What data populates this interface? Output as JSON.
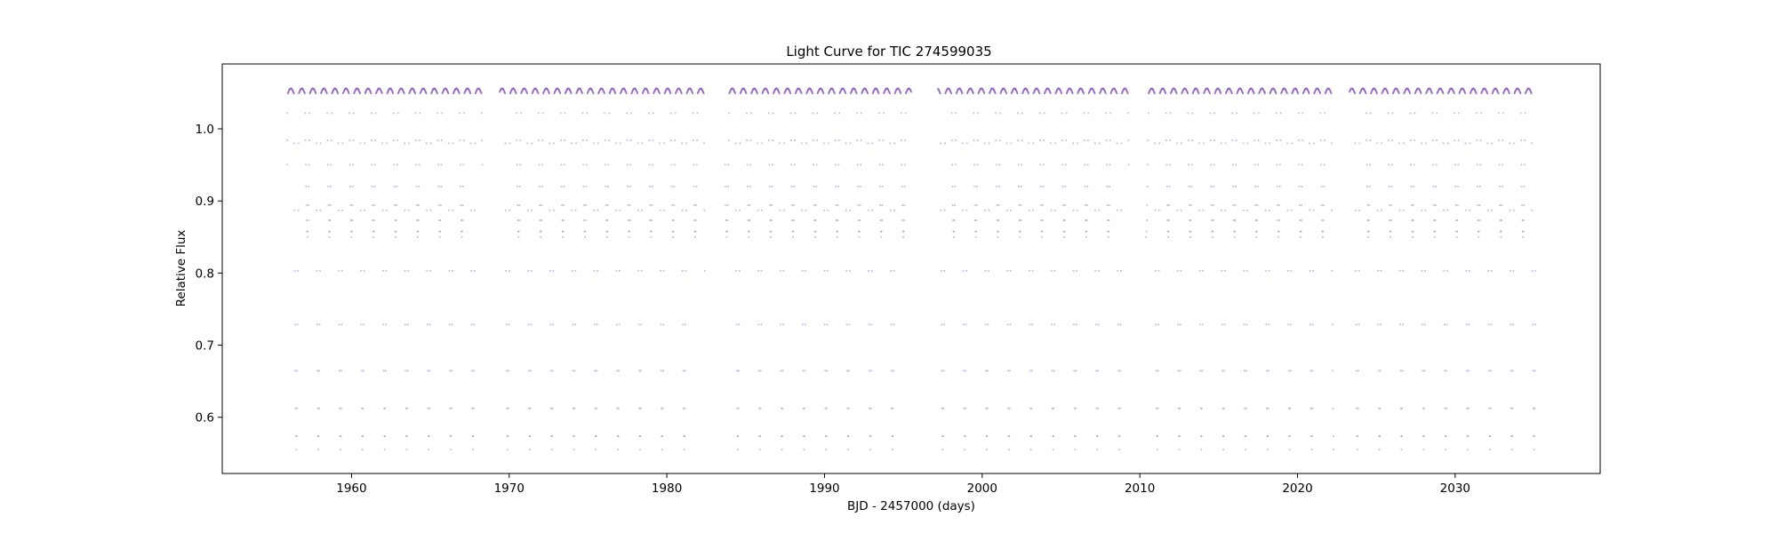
{
  "chart_data": {
    "type": "scatter",
    "title": "Light Curve for TIC 274599035",
    "xlabel": "BJD - 2457000 (days)",
    "ylabel": "Relative Flux",
    "xlim": [
      1951.8,
      2039.2
    ],
    "ylim": [
      0.522,
      1.09
    ],
    "x_ticks": [
      1960,
      1970,
      1980,
      1990,
      2000,
      2010,
      2020,
      2030
    ],
    "y_ticks": [
      0.6,
      0.7,
      0.8,
      0.9,
      1.0
    ],
    "grid": false,
    "legend": "none",
    "marker_color": "#9467bd",
    "series": [
      {
        "segments": [
          {
            "start": 1955.9,
            "end": 1968.3,
            "first_minimum": 1956.5
          },
          {
            "start": 1969.4,
            "end": 1982.4,
            "first_minimum": 1969.9
          },
          {
            "start": 1983.7,
            "end": 1995.5,
            "first_minimum": 1984.5
          },
          {
            "start": 1997.2,
            "end": 2009.3,
            "first_minimum": 1997.5
          },
          {
            "start": 2010.4,
            "end": 2022.3,
            "first_minimum": 2011.1
          },
          {
            "start": 2023.3,
            "end": 2035.1,
            "first_minimum": 2023.8
          }
        ],
        "period_days": 0.7,
        "max_flux": 1.05,
        "shallow_minimum_flux": 0.85,
        "deep_minimum_flux": 0.555
      }
    ]
  }
}
